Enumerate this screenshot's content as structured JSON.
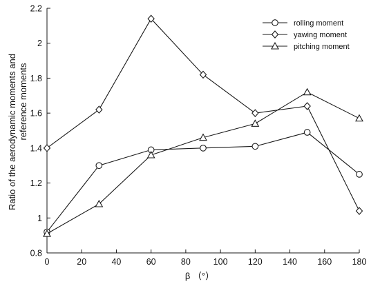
{
  "chart_data": {
    "type": "line",
    "x": [
      0,
      30,
      60,
      90,
      120,
      150,
      180
    ],
    "series": [
      {
        "name": "rolling moment",
        "marker": "circle",
        "values": [
          0.92,
          1.3,
          1.39,
          1.4,
          1.41,
          1.49,
          1.25
        ]
      },
      {
        "name": "yawing moment",
        "marker": "diamond",
        "values": [
          1.4,
          1.62,
          2.14,
          1.82,
          1.6,
          1.64,
          1.04
        ]
      },
      {
        "name": "pitching moment",
        "marker": "triangle",
        "values": [
          0.91,
          1.08,
          1.36,
          1.46,
          1.54,
          1.72,
          1.57
        ]
      }
    ],
    "xlim": [
      0,
      180
    ],
    "ylim": [
      0.8,
      2.2
    ],
    "xticks": [
      0,
      20,
      40,
      60,
      80,
      100,
      120,
      140,
      160,
      180
    ],
    "yticks": [
      0.8,
      1,
      1.2,
      1.4,
      1.6,
      1.8,
      2,
      2.2
    ],
    "xlabel": "β （°）",
    "ylabel_line1": "Ratio of the aerodynamic moments and",
    "ylabel_line2": "reference moments",
    "legend_position": "top-right",
    "grid": false,
    "line_color": "#1a1a1a"
  }
}
